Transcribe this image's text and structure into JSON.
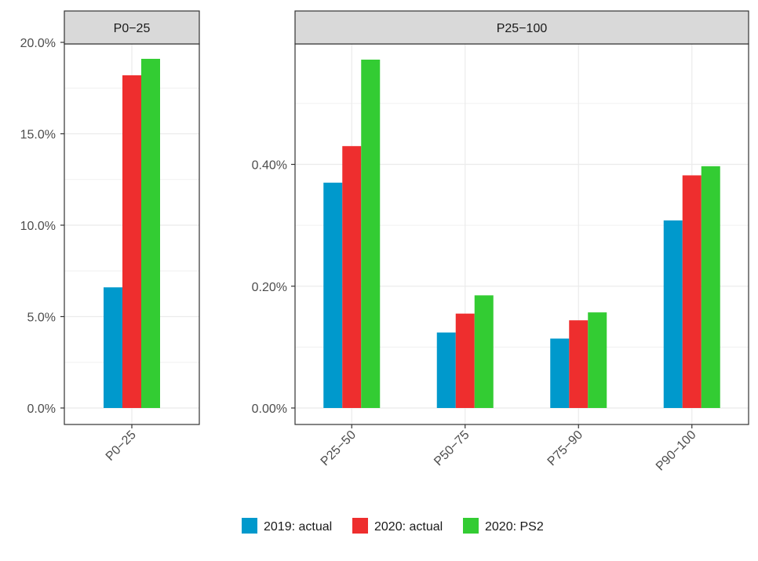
{
  "chart_data": {
    "type": "bar",
    "series": [
      {
        "name": "2019: actual",
        "color": "#0099CC"
      },
      {
        "name": "2020: actual",
        "color": "#EE2E2E"
      },
      {
        "name": "2020: PS2",
        "color": "#33CC33"
      }
    ],
    "panels": [
      {
        "title": "P0−25",
        "categories": [
          "P0−25"
        ],
        "values": [
          [
            6.6,
            18.2,
            19.1
          ]
        ],
        "ylim": [
          0,
          20.0
        ],
        "yticks": [
          {
            "value": 0,
            "label": "0.0%"
          },
          {
            "value": 5,
            "label": "5.0%"
          },
          {
            "value": 10,
            "label": "10.0%"
          },
          {
            "value": 15,
            "label": "15.0%"
          },
          {
            "value": 20,
            "label": "20.0%"
          }
        ]
      },
      {
        "title": "P25−100",
        "categories": [
          "P25−50",
          "P50−75",
          "P75−90",
          "P90−100"
        ],
        "values": [
          [
            0.37,
            0.43,
            0.572
          ],
          [
            0.124,
            0.155,
            0.185
          ],
          [
            0.114,
            0.144,
            0.157
          ],
          [
            0.308,
            0.382,
            0.397
          ]
        ],
        "ylim": [
          0,
          0.572
        ],
        "yticks": [
          {
            "value": 0,
            "label": "0.00%"
          },
          {
            "value": 0.2,
            "label": "0.20%"
          },
          {
            "value": 0.4,
            "label": "0.40%"
          }
        ]
      }
    ],
    "legend": "bottom",
    "grid": true
  }
}
